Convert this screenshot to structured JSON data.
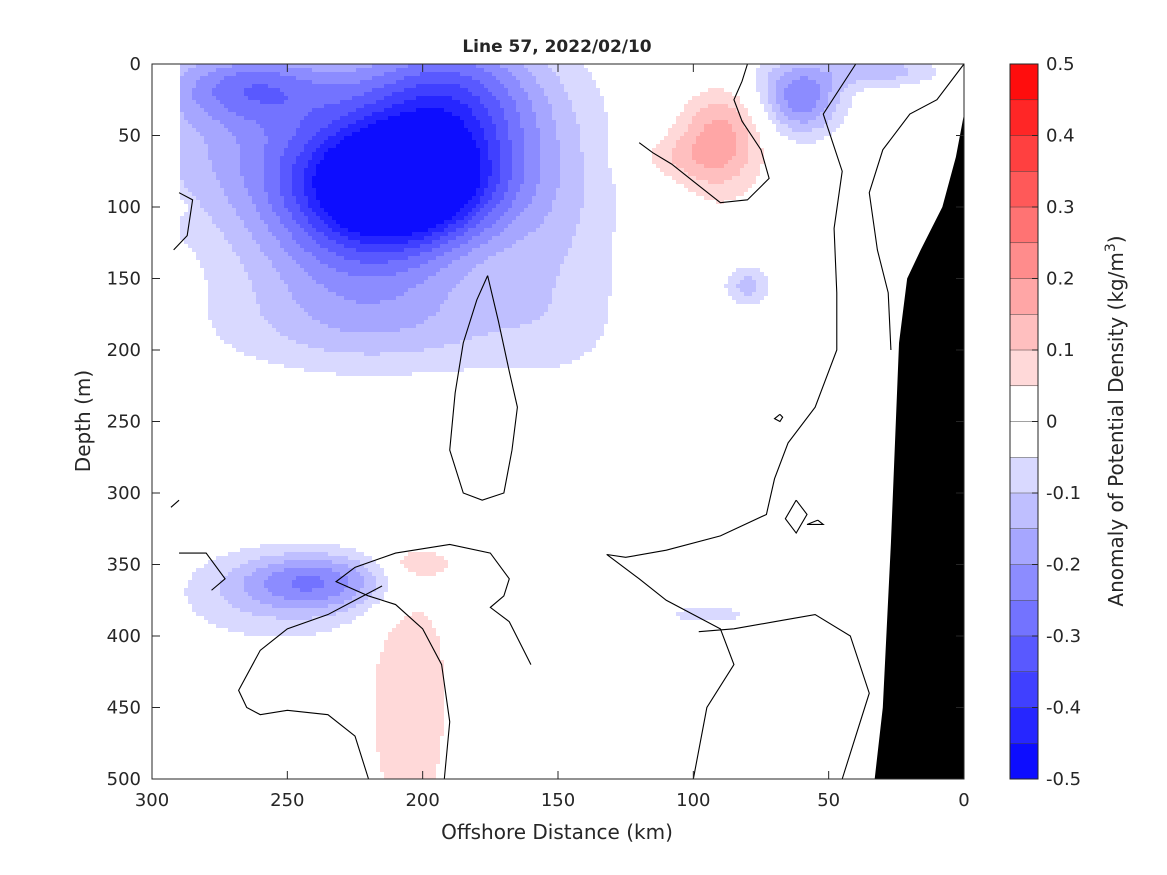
{
  "chart_data": {
    "type": "heatmap",
    "title": "Line 57, 2022/02/10",
    "xlabel": "Offshore Distance (km)",
    "ylabel": "Depth (m)",
    "xlim": [
      300,
      0
    ],
    "ylim": [
      500,
      0
    ],
    "x_reversed": true,
    "y_reversed": true,
    "xticks": [
      300,
      250,
      200,
      150,
      100,
      50,
      0
    ],
    "yticks": [
      0,
      50,
      100,
      150,
      200,
      250,
      300,
      350,
      400,
      450,
      500
    ],
    "colorbar": {
      "label_parts": [
        "Anomaly of Potential Density (kg/m",
        "3",
        ")"
      ],
      "range": [
        -0.5,
        0.5
      ],
      "ticks": [
        0.5,
        0.4,
        0.3,
        0.2,
        0.1,
        0,
        -0.1,
        -0.2,
        -0.3,
        -0.4,
        -0.5
      ],
      "levels": [
        -0.5,
        -0.45,
        -0.4,
        -0.35,
        -0.3,
        -0.25,
        -0.2,
        -0.15,
        -0.1,
        -0.05,
        0,
        0.05,
        0.1,
        0.15,
        0.2,
        0.25,
        0.3,
        0.35,
        0.4,
        0.45,
        0.5
      ],
      "colormap": "blue-white-red"
    },
    "grid": false,
    "zero_contour": true,
    "data_x_range": [
      290,
      0
    ],
    "seafloor_color": "#000000",
    "seafloor_boundary": [
      [
        33,
        500
      ],
      [
        30,
        450
      ],
      [
        27,
        335
      ],
      [
        24,
        195
      ],
      [
        21,
        150
      ],
      [
        16,
        130
      ],
      [
        8,
        100
      ],
      [
        3,
        65
      ],
      [
        0,
        35
      ]
    ],
    "anomaly_fields": [
      {
        "x": 207,
        "y": 85,
        "amp": -0.5,
        "sx": 24,
        "sy": 27
      },
      {
        "x": 235,
        "y": 60,
        "amp": -0.22,
        "sx": 45,
        "sy": 40
      },
      {
        "x": 222,
        "y": 130,
        "amp": -0.2,
        "sx": 30,
        "sy": 35
      },
      {
        "x": 190,
        "y": 25,
        "amp": -0.28,
        "sx": 24,
        "sy": 35
      },
      {
        "x": 265,
        "y": 15,
        "amp": -0.2,
        "sx": 22,
        "sy": 18
      },
      {
        "x": 215,
        "y": 185,
        "amp": -0.1,
        "sx": 45,
        "sy": 25
      },
      {
        "x": 150,
        "y": 120,
        "amp": -0.08,
        "sx": 18,
        "sy": 65
      },
      {
        "x": 60,
        "y": 25,
        "amp": -0.22,
        "sx": 10,
        "sy": 18
      },
      {
        "x": 30,
        "y": 5,
        "amp": -0.12,
        "sx": 15,
        "sy": 8
      },
      {
        "x": 80,
        "y": 10,
        "amp": -0.05,
        "sx": 25,
        "sy": 15
      },
      {
        "x": 80,
        "y": 155,
        "amp": -0.12,
        "sx": 6,
        "sy": 10
      },
      {
        "x": 240,
        "y": 362,
        "amp": -0.2,
        "sx": 20,
        "sy": 14
      },
      {
        "x": 255,
        "y": 375,
        "amp": -0.08,
        "sx": 28,
        "sy": 25
      },
      {
        "x": 95,
        "y": 385,
        "amp": -0.08,
        "sx": 12,
        "sy": 5
      },
      {
        "x": 90,
        "y": 50,
        "amp": 0.17,
        "sx": 11,
        "sy": 30
      },
      {
        "x": 107,
        "y": 65,
        "amp": 0.07,
        "sx": 12,
        "sy": 12
      },
      {
        "x": 205,
        "y": 440,
        "amp": 0.1,
        "sx": 11,
        "sy": 75
      },
      {
        "x": 200,
        "y": 350,
        "amp": 0.08,
        "sx": 8,
        "sy": 6
      },
      {
        "x": 290,
        "y": 100,
        "amp": 0.06,
        "sx": 3,
        "sy": 4
      }
    ],
    "zero_contours": [
      [
        [
          120,
          55
        ],
        [
          115,
          62
        ],
        [
          108,
          70
        ],
        [
          100,
          82
        ],
        [
          90,
          97
        ],
        [
          80,
          95
        ],
        [
          72,
          80
        ],
        [
          75,
          60
        ],
        [
          82,
          40
        ],
        [
          85,
          25
        ],
        [
          82,
          12
        ],
        [
          80,
          0
        ]
      ],
      [
        [
          176,
          148
        ],
        [
          180,
          165
        ],
        [
          185,
          195
        ],
        [
          188,
          230
        ],
        [
          190,
          270
        ],
        [
          185,
          300
        ],
        [
          178,
          305
        ],
        [
          170,
          300
        ],
        [
          167,
          270
        ],
        [
          165,
          240
        ],
        [
          168,
          215
        ],
        [
          172,
          180
        ],
        [
          176,
          148
        ]
      ],
      [
        [
          290,
          90
        ],
        [
          285,
          95
        ],
        [
          287,
          120
        ],
        [
          292,
          130
        ]
      ],
      [
        [
          290,
          305
        ],
        [
          293,
          310
        ]
      ],
      [
        [
          290,
          342
        ],
        [
          280,
          342
        ],
        [
          273,
          360
        ],
        [
          278,
          368
        ]
      ],
      [
        [
          192,
          500
        ],
        [
          190,
          460
        ],
        [
          193,
          420
        ],
        [
          200,
          395
        ],
        [
          210,
          378
        ],
        [
          220,
          372
        ],
        [
          232,
          362
        ],
        [
          225,
          352
        ],
        [
          210,
          342
        ],
        [
          190,
          336
        ],
        [
          175,
          342
        ],
        [
          168,
          360
        ],
        [
          170,
          372
        ],
        [
          175,
          380
        ],
        [
          168,
          390
        ],
        [
          160,
          420
        ]
      ],
      [
        [
          220,
          500
        ],
        [
          225,
          470
        ],
        [
          235,
          455
        ],
        [
          250,
          452
        ],
        [
          260,
          455
        ],
        [
          265,
          450
        ],
        [
          268,
          438
        ],
        [
          260,
          410
        ],
        [
          250,
          395
        ],
        [
          235,
          385
        ],
        [
          225,
          375
        ],
        [
          215,
          365
        ]
      ],
      [
        [
          40,
          0
        ],
        [
          52,
          35
        ],
        [
          45,
          75
        ],
        [
          48,
          115
        ],
        [
          47,
          160
        ],
        [
          47,
          200
        ],
        [
          55,
          240
        ],
        [
          65,
          265
        ],
        [
          70,
          290
        ],
        [
          73,
          315
        ],
        [
          90,
          330
        ],
        [
          110,
          340
        ],
        [
          125,
          345
        ],
        [
          132,
          343
        ],
        [
          120,
          360
        ],
        [
          110,
          375
        ],
        [
          90,
          395
        ],
        [
          85,
          420
        ],
        [
          95,
          450
        ],
        [
          100,
          500
        ]
      ],
      [
        [
          45,
          500
        ],
        [
          40,
          470
        ],
        [
          35,
          440
        ],
        [
          42,
          400
        ],
        [
          55,
          385
        ],
        [
          70,
          390
        ],
        [
          85,
          395
        ],
        [
          98,
          397
        ]
      ],
      [
        [
          62,
          305
        ],
        [
          66,
          318
        ],
        [
          62,
          328
        ],
        [
          58,
          315
        ],
        [
          62,
          305
        ]
      ],
      [
        [
          54,
          319
        ],
        [
          52,
          322
        ],
        [
          58,
          322
        ],
        [
          54,
          319
        ]
      ],
      [
        [
          68,
          245
        ],
        [
          70,
          248
        ],
        [
          68,
          250
        ],
        [
          67,
          247
        ],
        [
          68,
          245
        ]
      ],
      [
        [
          0,
          0
        ],
        [
          10,
          25
        ],
        [
          20,
          35
        ],
        [
          30,
          60
        ],
        [
          35,
          90
        ],
        [
          32,
          130
        ],
        [
          28,
          160
        ],
        [
          27,
          200
        ]
      ]
    ]
  }
}
